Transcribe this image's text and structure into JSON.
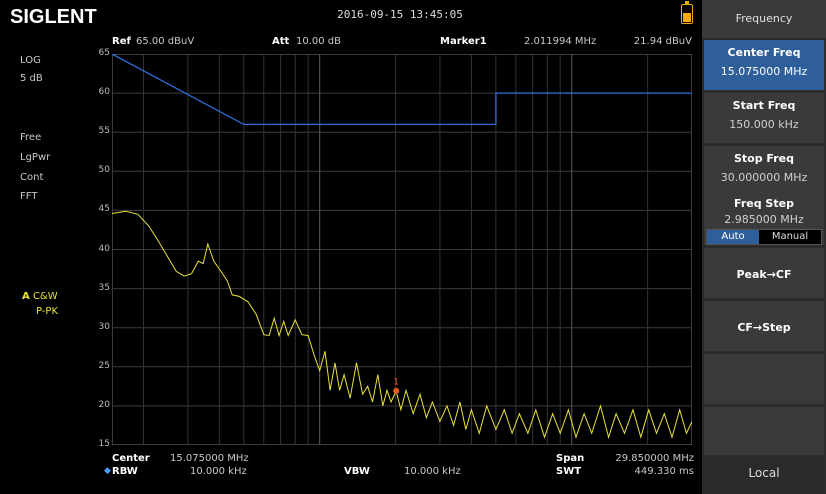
{
  "brand": "SIGLENT",
  "datetime": "2016-09-15  13:45:05",
  "header": {
    "ref_label": "Ref",
    "ref_value": "65.00 dBuV",
    "att_label": "Att",
    "att_value": "10.00 dB",
    "marker_label": "Marker1",
    "marker_freq": "2.011994 MHz",
    "marker_level": "21.94 dBuV"
  },
  "left_panel": {
    "scale_type": "LOG",
    "scale_div": "5 dB",
    "sweep_mode": "Free",
    "det": "LgPwr",
    "trig": "Cont",
    "sweep_type": "FFT",
    "trace_letter": "A",
    "trace_mode": "C&W",
    "trace_det": "P-PK"
  },
  "footer": {
    "center_label": "Center",
    "center_value": "15.075000 MHz",
    "rbw_label": "RBW",
    "rbw_value": "10.000 kHz",
    "vbw_label": "VBW",
    "vbw_value": "10.000 kHz",
    "span_label": "Span",
    "span_value": "29.850000 MHz",
    "swt_label": "SWT",
    "swt_value": "449.330 ms"
  },
  "menu": {
    "title": "Frequency",
    "center_freq_label": "Center Freq",
    "center_freq_value": "15.075000 MHz",
    "start_freq_label": "Start Freq",
    "start_freq_value": "150.000 kHz",
    "stop_freq_label": "Stop Freq",
    "stop_freq_value": "30.000000 MHz",
    "freq_step_label": "Freq Step",
    "freq_step_value": "2.985000 MHz",
    "auto_label": "Auto",
    "manual_label": "Manual",
    "peak_cf_label": "Peak→CF",
    "cf_step_label": "CF→Step",
    "local_label": "Local"
  },
  "chart_data": {
    "type": "line",
    "y_ticks": [
      "65",
      "60",
      "55",
      "50",
      "45",
      "40",
      "35",
      "30",
      "25",
      "20",
      "15"
    ],
    "ylim": [
      15,
      65
    ],
    "x_scale": "log",
    "xlim_mhz": [
      0.15,
      30.0
    ],
    "grid": true,
    "limit_line_color": "#2f6fd8",
    "trace_color": "#e8e23a",
    "marker_color": "#e85a1a",
    "marker_label": "1",
    "limit_line": [
      {
        "x": 0.15,
        "y": 65
      },
      {
        "x": 0.5,
        "y": 56
      },
      {
        "x": 5.0,
        "y": 56
      },
      {
        "x": 5.0,
        "y": 60
      },
      {
        "x": 30.0,
        "y": 60
      }
    ],
    "trace": [
      {
        "x": 0.15,
        "y": 44.6
      },
      {
        "x": 0.17,
        "y": 44.9
      },
      {
        "x": 0.19,
        "y": 44.5
      },
      {
        "x": 0.21,
        "y": 43.0
      },
      {
        "x": 0.23,
        "y": 41.0
      },
      {
        "x": 0.25,
        "y": 39.0
      },
      {
        "x": 0.27,
        "y": 37.2
      },
      {
        "x": 0.29,
        "y": 36.6
      },
      {
        "x": 0.31,
        "y": 36.9
      },
      {
        "x": 0.33,
        "y": 38.5
      },
      {
        "x": 0.345,
        "y": 38.2
      },
      {
        "x": 0.36,
        "y": 40.7
      },
      {
        "x": 0.38,
        "y": 38.5
      },
      {
        "x": 0.4,
        "y": 37.5
      },
      {
        "x": 0.43,
        "y": 36.0
      },
      {
        "x": 0.45,
        "y": 34.2
      },
      {
        "x": 0.48,
        "y": 34.0
      },
      {
        "x": 0.52,
        "y": 33.3
      },
      {
        "x": 0.56,
        "y": 31.7
      },
      {
        "x": 0.6,
        "y": 29.1
      },
      {
        "x": 0.63,
        "y": 29.0
      },
      {
        "x": 0.66,
        "y": 31.2
      },
      {
        "x": 0.69,
        "y": 29.0
      },
      {
        "x": 0.72,
        "y": 30.8
      },
      {
        "x": 0.75,
        "y": 29.0
      },
      {
        "x": 0.8,
        "y": 31.0
      },
      {
        "x": 0.85,
        "y": 29.1
      },
      {
        "x": 0.9,
        "y": 29.0
      },
      {
        "x": 0.95,
        "y": 26.5
      },
      {
        "x": 1.0,
        "y": 24.5
      },
      {
        "x": 1.05,
        "y": 27.0
      },
      {
        "x": 1.1,
        "y": 22.0
      },
      {
        "x": 1.15,
        "y": 25.5
      },
      {
        "x": 1.2,
        "y": 22.0
      },
      {
        "x": 1.25,
        "y": 24.0
      },
      {
        "x": 1.32,
        "y": 21.0
      },
      {
        "x": 1.4,
        "y": 25.5
      },
      {
        "x": 1.48,
        "y": 21.5
      },
      {
        "x": 1.55,
        "y": 22.5
      },
      {
        "x": 1.62,
        "y": 20.5
      },
      {
        "x": 1.7,
        "y": 24.0
      },
      {
        "x": 1.78,
        "y": 20.0
      },
      {
        "x": 1.85,
        "y": 22.0
      },
      {
        "x": 1.92,
        "y": 20.5
      },
      {
        "x": 2.01,
        "y": 21.9
      },
      {
        "x": 2.1,
        "y": 19.5
      },
      {
        "x": 2.2,
        "y": 22.0
      },
      {
        "x": 2.35,
        "y": 19.0
      },
      {
        "x": 2.5,
        "y": 21.5
      },
      {
        "x": 2.65,
        "y": 18.5
      },
      {
        "x": 2.8,
        "y": 20.5
      },
      {
        "x": 3.0,
        "y": 18.0
      },
      {
        "x": 3.2,
        "y": 20.0
      },
      {
        "x": 3.4,
        "y": 17.5
      },
      {
        "x": 3.6,
        "y": 20.5
      },
      {
        "x": 3.8,
        "y": 17.0
      },
      {
        "x": 4.0,
        "y": 19.5
      },
      {
        "x": 4.3,
        "y": 16.5
      },
      {
        "x": 4.6,
        "y": 20.0
      },
      {
        "x": 5.0,
        "y": 17.0
      },
      {
        "x": 5.4,
        "y": 19.5
      },
      {
        "x": 5.8,
        "y": 16.5
      },
      {
        "x": 6.2,
        "y": 19.0
      },
      {
        "x": 6.7,
        "y": 16.5
      },
      {
        "x": 7.2,
        "y": 19.5
      },
      {
        "x": 7.8,
        "y": 16.0
      },
      {
        "x": 8.4,
        "y": 19.0
      },
      {
        "x": 9.0,
        "y": 16.5
      },
      {
        "x": 9.7,
        "y": 19.5
      },
      {
        "x": 10.4,
        "y": 16.0
      },
      {
        "x": 11.2,
        "y": 19.0
      },
      {
        "x": 12.0,
        "y": 16.5
      },
      {
        "x": 13.0,
        "y": 20.0
      },
      {
        "x": 14.0,
        "y": 16.0
      },
      {
        "x": 15.0,
        "y": 19.0
      },
      {
        "x": 16.2,
        "y": 16.5
      },
      {
        "x": 17.5,
        "y": 19.5
      },
      {
        "x": 18.8,
        "y": 16.0
      },
      {
        "x": 20.2,
        "y": 19.5
      },
      {
        "x": 21.7,
        "y": 16.5
      },
      {
        "x": 23.3,
        "y": 19.0
      },
      {
        "x": 25.0,
        "y": 16.0
      },
      {
        "x": 26.8,
        "y": 19.5
      },
      {
        "x": 28.5,
        "y": 16.5
      },
      {
        "x": 30.0,
        "y": 18.0
      }
    ],
    "marker": {
      "x": 2.011994,
      "y": 21.94
    }
  }
}
